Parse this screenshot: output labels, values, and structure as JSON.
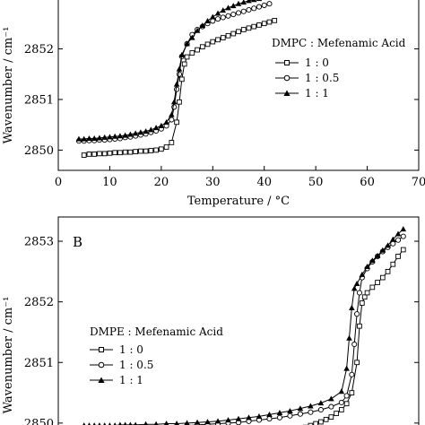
{
  "chart_data": [
    {
      "type": "line",
      "panel": "",
      "xlabel": "Temperature / °C",
      "ylabel": "Wavenumber / cm⁻¹",
      "xlim": [
        0,
        70
      ],
      "ylim": [
        2849.6,
        2853.0
      ],
      "xticks": [
        0,
        10,
        20,
        30,
        40,
        50,
        60,
        70
      ],
      "yticks": [
        2850,
        2851,
        2852
      ],
      "grid": false,
      "legend": {
        "title": "DMPC : Mefenamic Acid",
        "placement": "right-middle",
        "entries": [
          "1 : 0",
          "1 : 0.5",
          "1 : 1"
        ]
      },
      "series": [
        {
          "name": "1 : 0",
          "marker": "square-open",
          "x": [
            5,
            6,
            7,
            8,
            9,
            10,
            11,
            12,
            13,
            14,
            15,
            16,
            17,
            18,
            19,
            20,
            21,
            22,
            23,
            23.5,
            24,
            24.5,
            25,
            26,
            27,
            28,
            29,
            30,
            31,
            32,
            33,
            34,
            35,
            36,
            37,
            38,
            39,
            40,
            41,
            42
          ],
          "y": [
            2849.9,
            2849.92,
            2849.92,
            2849.93,
            2849.93,
            2849.94,
            2849.95,
            2849.95,
            2849.96,
            2849.96,
            2849.97,
            2849.98,
            2849.98,
            2849.99,
            2850.0,
            2850.02,
            2850.06,
            2850.15,
            2850.55,
            2850.95,
            2851.4,
            2851.7,
            2851.84,
            2851.92,
            2851.98,
            2852.04,
            2852.09,
            2852.14,
            2852.18,
            2852.22,
            2852.26,
            2852.3,
            2852.34,
            2852.38,
            2852.41,
            2852.44,
            2852.47,
            2852.5,
            2852.53,
            2852.56
          ]
        },
        {
          "name": "1 : 0.5",
          "marker": "circle-open",
          "x": [
            4,
            5,
            6,
            7,
            8,
            9,
            10,
            11,
            12,
            13,
            14,
            15,
            16,
            17,
            18,
            19,
            20,
            21,
            22,
            22.5,
            23,
            23.5,
            24,
            25,
            26,
            27,
            28,
            29,
            30,
            31,
            32,
            33,
            34,
            35,
            36,
            37,
            38,
            39,
            40,
            41
          ],
          "y": [
            2850.18,
            2850.18,
            2850.19,
            2850.19,
            2850.2,
            2850.2,
            2850.21,
            2850.22,
            2850.23,
            2850.25,
            2850.26,
            2850.28,
            2850.3,
            2850.32,
            2850.35,
            2850.38,
            2850.42,
            2850.48,
            2850.6,
            2850.85,
            2851.2,
            2851.5,
            2851.85,
            2852.1,
            2852.28,
            2852.38,
            2852.44,
            2852.5,
            2852.55,
            2852.59,
            2852.62,
            2852.65,
            2852.68,
            2852.71,
            2852.74,
            2852.77,
            2852.8,
            2852.83,
            2852.86,
            2852.89
          ]
        },
        {
          "name": "1 : 1",
          "marker": "triangle-filled",
          "x": [
            4,
            5,
            6,
            7,
            8,
            9,
            10,
            11,
            12,
            13,
            14,
            15,
            16,
            17,
            18,
            19,
            20,
            21,
            22,
            22.5,
            23,
            23.5,
            24,
            25,
            26,
            27,
            28,
            29,
            30,
            31,
            32,
            33,
            34,
            35,
            36,
            37,
            38,
            39,
            40,
            41
          ],
          "y": [
            2850.22,
            2850.22,
            2850.23,
            2850.23,
            2850.24,
            2850.25,
            2850.26,
            2850.27,
            2850.28,
            2850.29,
            2850.31,
            2850.33,
            2850.35,
            2850.37,
            2850.4,
            2850.44,
            2850.48,
            2850.55,
            2850.7,
            2850.95,
            2851.3,
            2851.6,
            2851.88,
            2852.1,
            2852.22,
            2852.36,
            2852.46,
            2852.55,
            2852.63,
            2852.7,
            2852.76,
            2852.81,
            2852.85,
            2852.89,
            2852.92,
            2852.95,
            2852.97,
            2852.99,
            2853.01,
            2853.03
          ]
        }
      ]
    },
    {
      "type": "line",
      "panel": "B",
      "xlabel": "",
      "ylabel": "Wavenumber / cm⁻¹",
      "xlim": [
        0,
        70
      ],
      "ylim": [
        2849.85,
        2853.4
      ],
      "yticks": [
        2850,
        2851,
        2852,
        2853
      ],
      "grid": false,
      "legend": {
        "title": "DMPE : Mefenamic Acid",
        "placement": "left-middle",
        "entries": [
          "1 : 0",
          "1 : 0.5",
          "1 : 1"
        ]
      },
      "series": [
        {
          "name": "1 : 0",
          "marker": "square-open",
          "x": [
            40,
            41,
            42,
            43,
            44,
            45,
            46,
            47,
            48,
            49,
            50,
            51,
            52,
            53,
            54,
            55,
            56,
            57,
            58,
            58.5,
            59,
            59.5,
            60,
            61,
            62,
            63,
            64,
            65,
            66,
            67
          ],
          "y": [
            2849.82,
            2849.82,
            2849.83,
            2849.84,
            2849.85,
            2849.87,
            2849.89,
            2849.91,
            2849.93,
            2849.96,
            2849.99,
            2850.02,
            2850.06,
            2850.1,
            2850.16,
            2850.22,
            2850.32,
            2850.5,
            2851.0,
            2851.6,
            2851.98,
            2852.08,
            2852.15,
            2852.24,
            2852.32,
            2852.4,
            2852.5,
            2852.62,
            2852.75,
            2852.86
          ]
        },
        {
          "name": "1 : 0.5",
          "marker": "circle-open",
          "x": [
            5,
            7,
            9,
            11,
            13,
            15,
            17,
            19,
            21,
            23,
            25,
            27,
            29,
            31,
            33,
            35,
            37,
            39,
            41,
            43,
            45,
            47,
            49,
            51,
            53,
            55,
            56,
            57,
            57.5,
            58,
            58.5,
            59,
            60,
            61,
            62,
            63,
            64,
            65,
            66,
            67
          ],
          "y": [
            2849.9,
            2849.9,
            2849.9,
            2849.91,
            2849.91,
            2849.92,
            2849.92,
            2849.93,
            2849.94,
            2849.95,
            2849.96,
            2849.97,
            2849.98,
            2849.99,
            2850.0,
            2850.01,
            2850.03,
            2850.05,
            2850.07,
            2850.09,
            2850.12,
            2850.15,
            2850.18,
            2850.22,
            2850.27,
            2850.34,
            2850.45,
            2850.8,
            2851.3,
            2851.8,
            2852.15,
            2852.4,
            2852.55,
            2852.66,
            2852.75,
            2852.83,
            2852.9,
            2852.96,
            2853.02,
            2853.08
          ]
        },
        {
          "name": "1 : 1",
          "marker": "triangle-filled",
          "x": [
            5,
            6,
            7,
            8,
            9,
            10,
            11,
            12,
            13,
            14,
            15,
            17,
            19,
            21,
            23,
            25,
            27,
            29,
            31,
            33,
            35,
            37,
            39,
            41,
            43,
            45,
            47,
            49,
            51,
            53,
            55,
            56,
            56.5,
            57,
            57.5,
            58,
            59,
            60,
            61,
            62,
            63,
            64,
            65,
            66,
            67
          ],
          "y": [
            2849.96,
            2849.96,
            2849.96,
            2849.96,
            2849.96,
            2849.96,
            2849.96,
            2849.97,
            2849.97,
            2849.97,
            2849.97,
            2849.98,
            2849.98,
            2849.99,
            2849.99,
            2850.0,
            2850.01,
            2850.02,
            2850.03,
            2850.05,
            2850.07,
            2850.09,
            2850.11,
            2850.14,
            2850.17,
            2850.2,
            2850.24,
            2850.28,
            2850.33,
            2850.4,
            2850.52,
            2850.9,
            2851.4,
            2851.9,
            2852.22,
            2852.3,
            2852.45,
            2852.58,
            2852.68,
            2852.76,
            2852.85,
            2852.93,
            2853.03,
            2853.12,
            2853.2
          ]
        }
      ]
    }
  ]
}
